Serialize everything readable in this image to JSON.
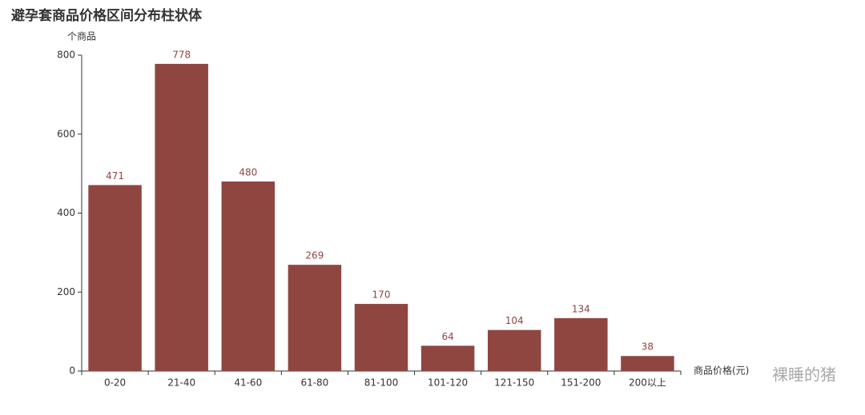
{
  "chart_data": {
    "type": "bar",
    "title": "避孕套商品价格区间分布柱状体",
    "y_axis_label": "个商品",
    "x_axis_label": "商品价格(元)",
    "watermark": "裸睡的猪",
    "categories": [
      "0-20",
      "21-40",
      "41-60",
      "61-80",
      "81-100",
      "101-120",
      "121-150",
      "151-200",
      "200以上"
    ],
    "values": [
      471,
      778,
      480,
      269,
      170,
      64,
      104,
      134,
      38
    ],
    "color": "#8f4641",
    "ylim": [
      0,
      800
    ],
    "yticks": [
      0,
      200,
      400,
      600,
      800
    ],
    "grid": false
  }
}
